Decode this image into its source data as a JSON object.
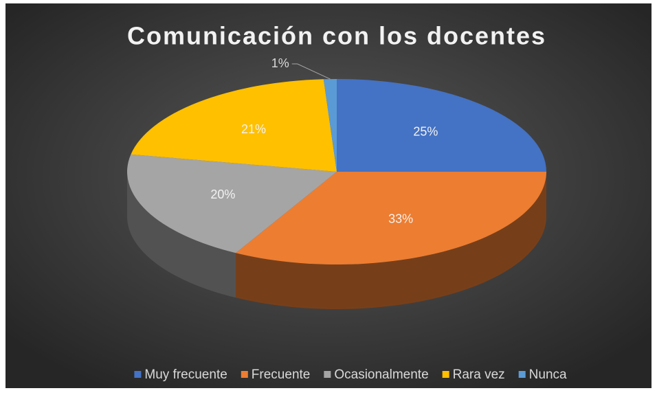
{
  "chart_data": {
    "type": "pie",
    "title": "Comunicación con los docentes",
    "categories": [
      "Muy frecuente",
      "Frecuente",
      "Ocasionalmente",
      "Rara vez",
      "Nunca"
    ],
    "values": [
      25,
      33,
      20,
      21,
      1
    ],
    "value_labels": [
      "25%",
      "33%",
      "20%",
      "21%",
      "1%"
    ],
    "colors": [
      "#4472c4",
      "#ed7d31",
      "#a5a5a5",
      "#ffc000",
      "#5b9bd5"
    ],
    "legend": "bottom"
  }
}
